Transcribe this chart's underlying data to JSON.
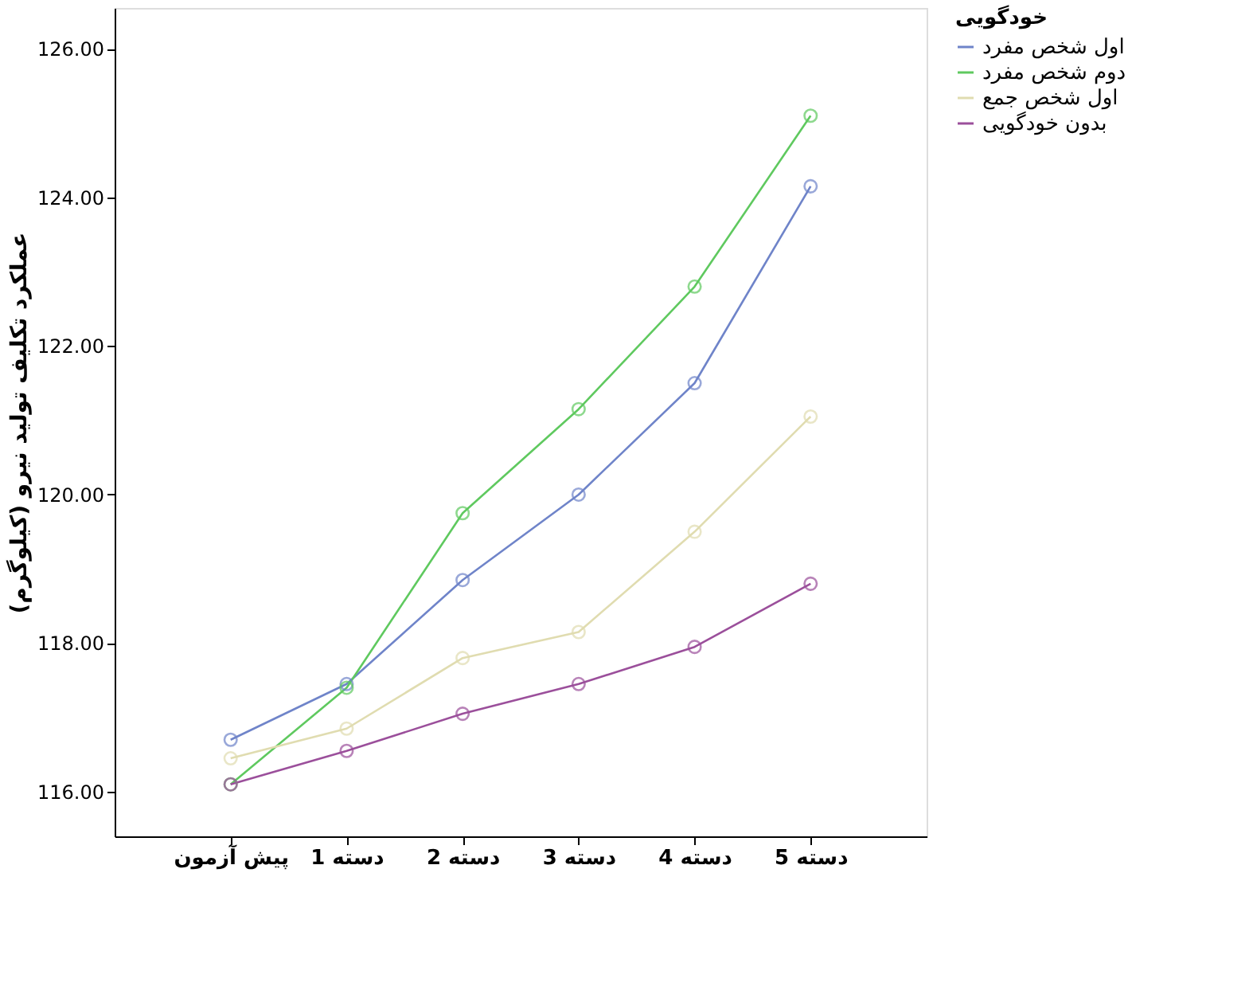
{
  "chart_data": {
    "type": "line",
    "ylabel": "عملکرد تکلیف تولید نیرو (کیلوگرم)",
    "legend_title": "خودگویی",
    "categories": [
      "پیش آزمون",
      "دسته 1",
      "دسته 2",
      "دسته 3",
      "دسته 4",
      "دسته 5"
    ],
    "series": [
      {
        "name": "اول شخص مفرد",
        "color": "#6f84c9",
        "values": [
          116.7,
          117.45,
          118.85,
          120.0,
          121.5,
          124.15
        ]
      },
      {
        "name": "دوم شخص مفرد",
        "color": "#5fc95f",
        "values": [
          116.1,
          117.4,
          119.75,
          121.15,
          122.8,
          125.1
        ]
      },
      {
        "name": "اول شخص جمع",
        "color": "#e0dcb0",
        "values": [
          116.45,
          116.85,
          117.8,
          118.15,
          119.5,
          121.05
        ]
      },
      {
        "name": "بدون خودگویی",
        "color": "#9b4f9b",
        "values": [
          116.1,
          116.55,
          117.05,
          117.45,
          117.95,
          118.8
        ]
      }
    ],
    "ylim": [
      115.4,
      126.55
    ],
    "yticks": [
      {
        "value": 116,
        "label": "116.00"
      },
      {
        "value": 118,
        "label": "118.00"
      },
      {
        "value": 120,
        "label": "120.00"
      },
      {
        "value": 122,
        "label": "122.00"
      },
      {
        "value": 124,
        "label": "124.00"
      },
      {
        "value": 126,
        "label": "126.00"
      }
    ],
    "grid": false,
    "legend": "right",
    "marker": "circle",
    "line_style": "solid"
  }
}
